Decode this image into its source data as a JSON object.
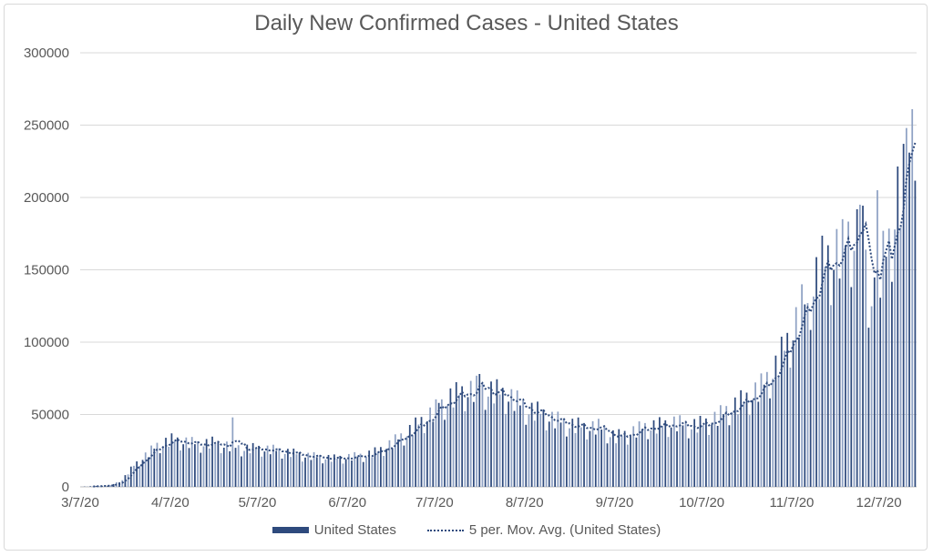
{
  "chart_data": {
    "type": "bar",
    "title": "Daily New Confirmed Cases - United States",
    "xlabel": "",
    "ylabel": "",
    "ylim": [
      0,
      300000
    ],
    "y_ticks": [
      "0",
      "50000",
      "100000",
      "150000",
      "200000",
      "250000",
      "300000"
    ],
    "x_tick_labels": [
      "3/7/20",
      "4/7/20",
      "5/7/20",
      "6/7/20",
      "7/7/20",
      "8/7/20",
      "9/7/20",
      "10/7/20",
      "11/7/20",
      "12/7/20"
    ],
    "x_tick_day_index": [
      0,
      31,
      61,
      92,
      122,
      153,
      184,
      214,
      245,
      275
    ],
    "start_date": "3/7/20",
    "day_count": 288,
    "anchors": [
      [
        0,
        100
      ],
      [
        10,
        1000
      ],
      [
        14,
        5000
      ],
      [
        18,
        15000
      ],
      [
        22,
        22000
      ],
      [
        26,
        29000
      ],
      [
        31,
        33000
      ],
      [
        35,
        32000
      ],
      [
        40,
        30000
      ],
      [
        45,
        31000
      ],
      [
        50,
        29000
      ],
      [
        55,
        27000
      ],
      [
        61,
        27000
      ],
      [
        66,
        26000
      ],
      [
        72,
        24000
      ],
      [
        77,
        22000
      ],
      [
        82,
        21000
      ],
      [
        87,
        20000
      ],
      [
        92,
        21000
      ],
      [
        97,
        22000
      ],
      [
        102,
        25000
      ],
      [
        107,
        31000
      ],
      [
        112,
        38000
      ],
      [
        117,
        46000
      ],
      [
        122,
        54000
      ],
      [
        127,
        63000
      ],
      [
        132,
        67000
      ],
      [
        137,
        69000
      ],
      [
        142,
        67000
      ],
      [
        147,
        64000
      ],
      [
        153,
        55000
      ],
      [
        158,
        52000
      ],
      [
        163,
        47000
      ],
      [
        168,
        44000
      ],
      [
        173,
        42000
      ],
      [
        178,
        42000
      ],
      [
        184,
        35000
      ],
      [
        189,
        38000
      ],
      [
        194,
        42000
      ],
      [
        199,
        43000
      ],
      [
        204,
        45000
      ],
      [
        209,
        43000
      ],
      [
        214,
        44000
      ],
      [
        219,
        49000
      ],
      [
        224,
        56000
      ],
      [
        229,
        62000
      ],
      [
        234,
        70000
      ],
      [
        239,
        84000
      ],
      [
        245,
        110000
      ],
      [
        250,
        135000
      ],
      [
        255,
        155000
      ],
      [
        260,
        165000
      ],
      [
        265,
        177000
      ],
      [
        268,
        178000
      ],
      [
        272,
        160000
      ],
      [
        275,
        152000
      ],
      [
        278,
        170000
      ],
      [
        281,
        205000
      ],
      [
        284,
        215000
      ],
      [
        287,
        230000
      ]
    ],
    "noise": [
      0.92,
      1.08,
      0.86,
      1.12,
      0.97,
      1.05,
      0.78
    ],
    "spikes": [
      [
        52,
        48000
      ],
      [
        123,
        58000
      ],
      [
        137,
        78000
      ],
      [
        250,
        127000
      ],
      [
        262,
        185000
      ],
      [
        268,
        195000
      ],
      [
        271,
        110000
      ],
      [
        274,
        205000
      ],
      [
        284,
        248000
      ],
      [
        286,
        261000
      ],
      [
        289,
        172000
      ],
      [
        290,
        212000
      ]
    ],
    "series": [
      {
        "name": "United States",
        "kind": "bar",
        "color": "#2e4a7d"
      },
      {
        "name": "5 per. Mov. Avg. (United States)",
        "kind": "line",
        "style": "dotted",
        "period": 5,
        "color": "#2e4a7d"
      }
    ]
  }
}
